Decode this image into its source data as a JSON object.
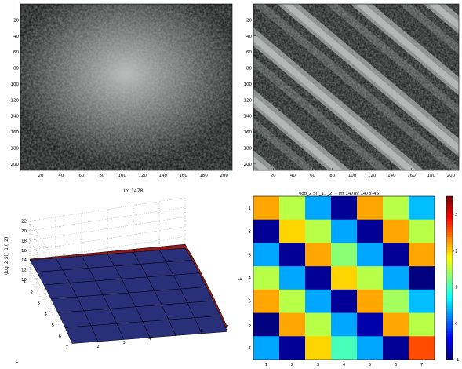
{
  "figure": {
    "panels": [
      {
        "id": "a",
        "kind": "texture-image",
        "xticks": [
          "20",
          "40",
          "60",
          "80",
          "100",
          "120",
          "140",
          "160",
          "180",
          "200"
        ],
        "yticks": [
          "20",
          "40",
          "60",
          "80",
          "100",
          "120",
          "140",
          "160",
          "180",
          "200"
        ]
      },
      {
        "id": "b",
        "kind": "texture-image",
        "xticks": [
          "20",
          "40",
          "60",
          "80",
          "100",
          "120",
          "140",
          "160",
          "180",
          "200"
        ],
        "yticks": [
          "20",
          "40",
          "60",
          "80",
          "100",
          "120",
          "140",
          "160",
          "180",
          "200"
        ]
      }
    ],
    "caption_a": "Im 1478",
    "surface": {
      "zlabel": "\\log_2 S([_1,(_2)",
      "yaxis_label": "L",
      "zticks": [
        "10",
        "12",
        "14",
        "16",
        "18",
        "20",
        "22"
      ],
      "lticks": [
        "1",
        "2",
        "3",
        "4",
        "5",
        "6",
        "7"
      ],
      "jticks": [
        "2",
        "3",
        "4",
        "5",
        "6",
        "7"
      ],
      "colors": {
        "blue": "#2a2f7a",
        "red": "#8b1a1a",
        "grid": "#000000"
      }
    },
    "heatmap": {
      "title": "\\log_2 S([_1,(_2) – Im 1478v 1478–45",
      "ylabel": "ⱡ₁",
      "rows": [
        "1",
        "2",
        "3",
        "4",
        "5",
        "6",
        "7"
      ],
      "cols": [
        "1",
        "2",
        "3",
        "4",
        "5",
        "6",
        "7"
      ],
      "colorbar_ticks": [
        "3",
        "2",
        "1",
        "0",
        "-1"
      ]
    }
  },
  "chart_data": [
    {
      "type": "heatmap",
      "title": "\\log_2 S([_1,(_2) – Im 1478v 1478–45",
      "rows": [
        1,
        2,
        3,
        4,
        5,
        6,
        7
      ],
      "cols": [
        1,
        2,
        3,
        4,
        5,
        6,
        7
      ],
      "values": [
        [
          2.2,
          1.5,
          0.3,
          -0.9,
          2.2,
          1.5,
          0.4
        ],
        [
          -0.9,
          2.0,
          1.5,
          0.3,
          -0.9,
          2.2,
          1.5
        ],
        [
          0.3,
          -0.9,
          2.2,
          1.3,
          0.3,
          -0.9,
          2.2
        ],
        [
          1.5,
          0.3,
          -0.9,
          2.0,
          1.5,
          0.3,
          -1.0
        ],
        [
          2.2,
          1.5,
          0.3,
          -0.9,
          2.2,
          1.4,
          0.4
        ],
        [
          -1.5,
          2.2,
          1.5,
          0.3,
          -0.8,
          2.2,
          1.5
        ],
        [
          0.3,
          -0.9,
          2.0,
          1.0,
          0.3,
          -0.9,
          2.6
        ]
      ],
      "colorbar_range": [
        -1,
        3.5
      ]
    },
    {
      "type": "surface",
      "zlabel": "\\log_2 S([_1,(_2)",
      "ylabel": "L",
      "zlim": [
        10,
        22
      ],
      "surfaces": [
        {
          "name": "",
          "color": "#2a2f7a",
          "values": [
            [
              14,
              13.6,
              13.2,
              12.8,
              12.4,
              12.0,
              11.6
            ],
            [
              13.8,
              13.4,
              13.0,
              12.6,
              12.2,
              11.8,
              11.4
            ],
            [
              13.4,
              13.0,
              12.6,
              12.2,
              11.8,
              11.4,
              11.0
            ],
            [
              12.8,
              12.4,
              12.0,
              11.6,
              11.2,
              10.8,
              10.4
            ],
            [
              12.2,
              11.8,
              11.4,
              11.0,
              10.6,
              10.2,
              9.8
            ],
            [
              11.4,
              11.0,
              10.6,
              10.2,
              9.8,
              9.4,
              9.0
            ],
            [
              10.4,
              10.0,
              9.6,
              9.2,
              8.8,
              8.4,
              8.0
            ]
          ]
        },
        {
          "name": "",
          "color": "#8b1a1a",
          "values": [
            [
              14.2,
              13.9,
              13.6,
              13.3,
              13.0,
              12.7,
              12.4
            ],
            [
              14.0,
              13.7,
              13.4,
              13.1,
              12.8,
              12.5,
              12.2
            ],
            [
              13.6,
              13.3,
              13.0,
              12.7,
              12.4,
              12.1,
              11.8
            ],
            [
              13.0,
              12.7,
              12.4,
              12.1,
              11.8,
              11.5,
              11.2
            ],
            [
              12.4,
              12.1,
              11.8,
              11.5,
              11.2,
              10.9,
              10.6
            ],
            [
              11.6,
              11.3,
              11.0,
              10.7,
              10.4,
              10.1,
              9.8
            ],
            [
              10.6,
              10.3,
              10.0,
              9.7,
              9.4,
              9.1,
              8.8
            ]
          ]
        }
      ]
    }
  ]
}
